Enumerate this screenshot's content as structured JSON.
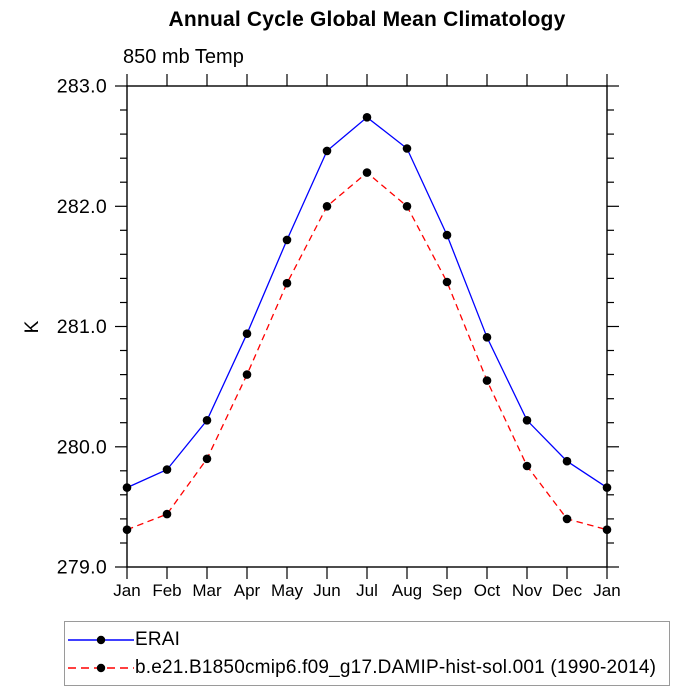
{
  "title": "Annual Cycle Global Mean Climatology",
  "subtitle": "850 mb Temp",
  "chart_data": {
    "type": "line",
    "categories": [
      "Jan",
      "Feb",
      "Mar",
      "Apr",
      "May",
      "Jun",
      "Jul",
      "Aug",
      "Sep",
      "Oct",
      "Nov",
      "Dec",
      "Jan"
    ],
    "title": "Annual Cycle Global Mean Climatology",
    "subtitle": "850 mb Temp",
    "xlabel": "",
    "ylabel": "K",
    "ylim": [
      279.0,
      283.0
    ],
    "y_major_step": 1.0,
    "y_minor_step": 0.2,
    "y_tick_labels": [
      "279.0",
      "280.0",
      "281.0",
      "282.0",
      "283.0"
    ],
    "grid": false,
    "legend_position": "bottom",
    "marker": "filled-black-circle",
    "series": [
      {
        "name": "ERAI",
        "color": "#0000ff",
        "line_style": "solid",
        "values": [
          279.66,
          279.81,
          280.22,
          280.94,
          281.72,
          282.46,
          282.74,
          282.48,
          281.76,
          280.91,
          280.22,
          279.88,
          279.66
        ]
      },
      {
        "name": "b.e21.B1850cmip6.f09_g17.DAMIP-hist-sol.001 (1990-2014)",
        "color": "#ff0000",
        "line_style": "dashed",
        "values": [
          279.31,
          279.44,
          279.9,
          280.6,
          281.36,
          282.0,
          282.28,
          282.0,
          281.37,
          280.55,
          279.84,
          279.4,
          279.31
        ]
      }
    ],
    "colors": {
      "axis": "#000000",
      "marker": "#000000",
      "legend_border": "#9a9a9a",
      "background": "#ffffff"
    }
  }
}
